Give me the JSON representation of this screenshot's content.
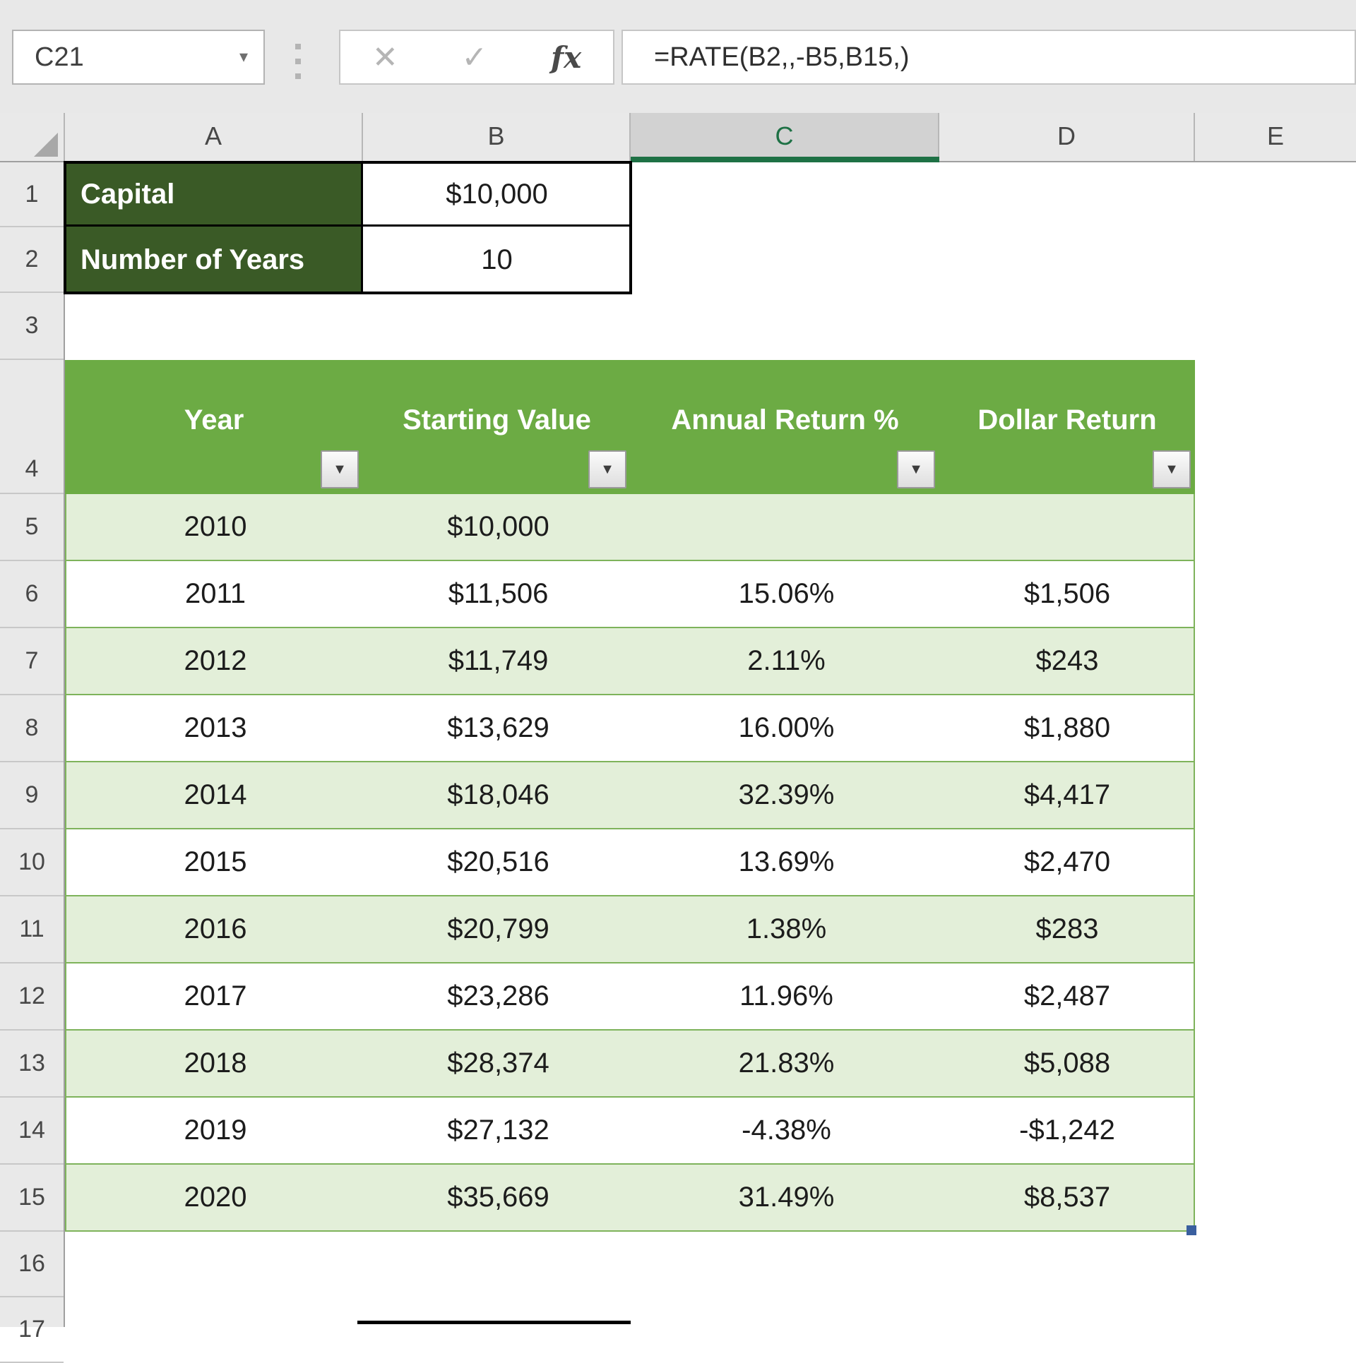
{
  "name_box": {
    "value": "C21",
    "dropdown_icon": "▾"
  },
  "formula_bar": {
    "cancel_icon": "✕",
    "confirm_icon": "✓",
    "fx_icon": "fx",
    "formula": "=RATE(B2,,-B5,B15,)"
  },
  "column_headers": [
    "A",
    "B",
    "C",
    "D",
    "E"
  ],
  "selected_column": "C",
  "row_headers": [
    "1",
    "2",
    "3",
    "4",
    "5",
    "6",
    "7",
    "8",
    "9",
    "10",
    "11",
    "12",
    "13",
    "14",
    "15",
    "16",
    "17"
  ],
  "cells": {
    "a1_label": "Capital",
    "b1_value": "$10,000",
    "a2_label": "Number of Years",
    "b2_value": "10"
  },
  "table": {
    "headers": [
      "Year",
      "Starting Value",
      "Annual Return %",
      "Dollar Return"
    ],
    "filter_icon": "▼",
    "rows": [
      {
        "year": "2010",
        "starting_value": "$10,000",
        "annual_return": "",
        "dollar_return": ""
      },
      {
        "year": "2011",
        "starting_value": "$11,506",
        "annual_return": "15.06%",
        "dollar_return": "$1,506"
      },
      {
        "year": "2012",
        "starting_value": "$11,749",
        "annual_return": "2.11%",
        "dollar_return": "$243"
      },
      {
        "year": "2013",
        "starting_value": "$13,629",
        "annual_return": "16.00%",
        "dollar_return": "$1,880"
      },
      {
        "year": "2014",
        "starting_value": "$18,046",
        "annual_return": "32.39%",
        "dollar_return": "$4,417"
      },
      {
        "year": "2015",
        "starting_value": "$20,516",
        "annual_return": "13.69%",
        "dollar_return": "$2,470"
      },
      {
        "year": "2016",
        "starting_value": "$20,799",
        "annual_return": "1.38%",
        "dollar_return": "$283"
      },
      {
        "year": "2017",
        "starting_value": "$23,286",
        "annual_return": "11.96%",
        "dollar_return": "$2,487"
      },
      {
        "year": "2018",
        "starting_value": "$28,374",
        "annual_return": "21.83%",
        "dollar_return": "$5,088"
      },
      {
        "year": "2019",
        "starting_value": "$27,132",
        "annual_return": "-4.38%",
        "dollar_return": "-$1,242"
      },
      {
        "year": "2020",
        "starting_value": "$35,669",
        "annual_return": "31.49%",
        "dollar_return": "$8,537"
      }
    ]
  },
  "colors": {
    "table_header_green": "#6cab44",
    "band_green": "#e3efd9",
    "dark_green": "#3a5a26",
    "selection_green": "#1e7145",
    "fill_handle_blue": "#3a5f9f"
  }
}
